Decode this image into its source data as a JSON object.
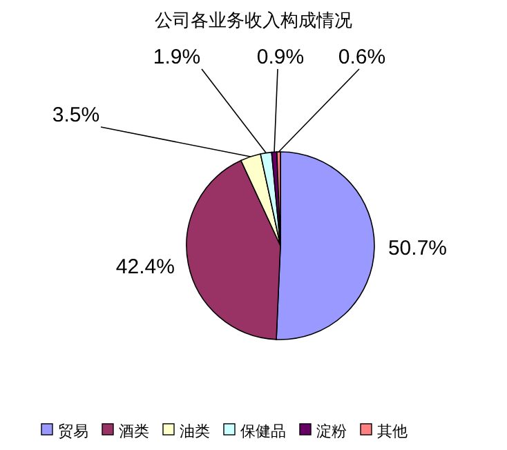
{
  "chart_data": {
    "type": "pie",
    "title": "公司各业务收入构成情况",
    "categories": [
      "贸易",
      "酒类",
      "油类",
      "保健品",
      "淀粉",
      "其他"
    ],
    "values": [
      50.7,
      42.4,
      3.5,
      1.9,
      0.9,
      0.6
    ],
    "value_labels": [
      "50.7%",
      "42.4%",
      "3.5%",
      "1.9%",
      "0.9%",
      "0.6%"
    ],
    "colors": [
      "#9999ff",
      "#993366",
      "#ffffcc",
      "#ccffff",
      "#660066",
      "#ff8080"
    ],
    "legend": "bottom"
  }
}
